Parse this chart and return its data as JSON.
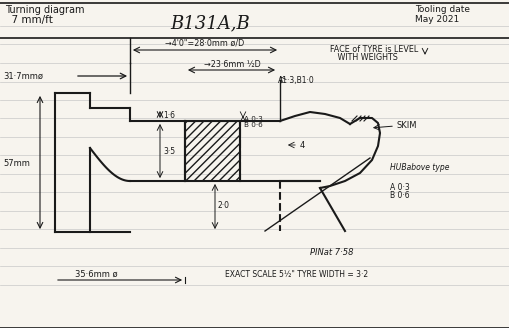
{
  "bg_color": "#f7f4ee",
  "line_color": "#1a1a1a",
  "ruled_line_color": "#c8c8c8",
  "title_left_1": "Turning diagram",
  "title_left_2": "  7 mm/ft",
  "title_center": "B131A,B",
  "title_right_1": "Tooling date",
  "title_right_2": "May 2021",
  "dim_4ft": "→4'0\"=28·0mm ø/D",
  "dim_23": "→23·6mm ½D",
  "dim_317": "31·7mmø",
  "dim_57": "57mm",
  "dim_16": "1·6",
  "dim_35": "3·5",
  "dim_20": "2·0",
  "dim_a13b10": "A1·3,B1·0",
  "dim_a03b06_top": "A 0·3\nB 0·6",
  "dim_4": "4",
  "dim_skim": "SKIM",
  "dim_hub": "HUBabove type",
  "dim_a03": "A 0·3",
  "dim_b06": "B 0·6",
  "dim_pin": "PINat 7·58",
  "dim_356": "35·6mm ø",
  "dim_exact": "EXACT SCALE 5½\" TYRE WIDTH = 3·2",
  "dim_face": "FACE of TYRE is LEVEL",
  "dim_with": "   WITH WEIGHTS"
}
